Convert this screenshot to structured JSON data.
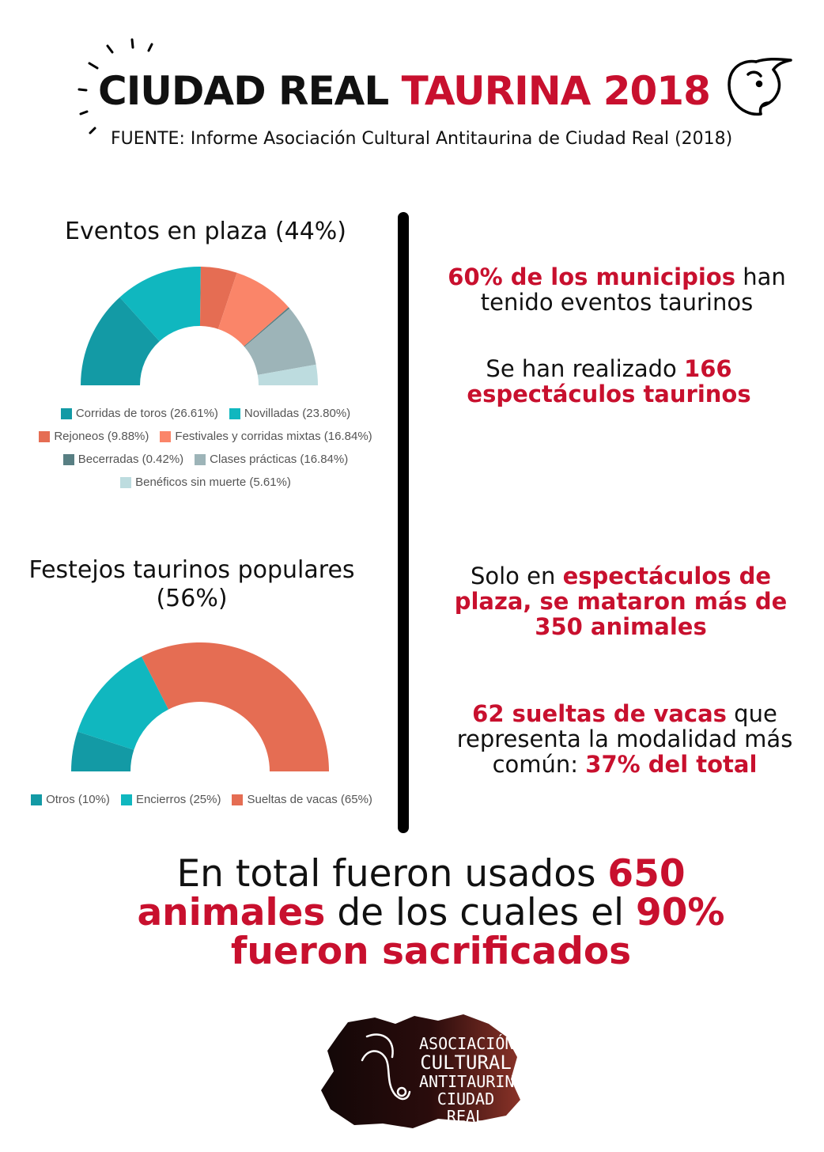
{
  "header": {
    "title_black": "CIUDAD REAL",
    "title_red": "TAURINA 2018",
    "source": "FUENTE: Informe Asociación Cultural Antitaurina de Ciudad Real (2018)"
  },
  "colors": {
    "accent": "#c8102e",
    "divider": "#000000"
  },
  "icons": {
    "header": "bull-head-icon",
    "sunburst": "sunburst-lines-icon"
  },
  "chart_data": [
    {
      "type": "pie",
      "variant": "semi-donut",
      "title": "Eventos en plaza (44%)",
      "legend_position": "bottom",
      "slices": [
        {
          "label": "Corridas de toros (26.61%)",
          "value": 26.61,
          "color": "#139aa5"
        },
        {
          "label": "Novilladas (23.80%)",
          "value": 23.8,
          "color": "#10b7bf"
        },
        {
          "label": "Rejoneos (9.88%)",
          "value": 9.88,
          "color": "#e56d53"
        },
        {
          "label": "Festivales y corridas mixtas (16.84%)",
          "value": 16.84,
          "color": "#fa8569"
        },
        {
          "label": "Becerradas (0.42%)",
          "value": 0.42,
          "color": "#587f83"
        },
        {
          "label": "Clases prácticas (16.84%)",
          "value": 16.84,
          "color": "#9db4b8"
        },
        {
          "label": "Benéficos sin muerte (5.61%)",
          "value": 5.61,
          "color": "#bddcdf"
        }
      ]
    },
    {
      "type": "pie",
      "variant": "semi-donut",
      "title": "Festejos taurinos populares (56%)",
      "legend_position": "bottom",
      "slices": [
        {
          "label": "Otros (10%)",
          "value": 10,
          "color": "#139aa5"
        },
        {
          "label": "Encierros (25%)",
          "value": 25,
          "color": "#10b7bf"
        },
        {
          "label": "Sueltas de vacas (65%)",
          "value": 65,
          "color": "#e56d53"
        }
      ]
    }
  ],
  "facts": [
    {
      "red": "60% de los municipios",
      "tail": " han tenido eventos taurinos"
    },
    {
      "head": "Se han realizado ",
      "red": "166 espectáculos taurinos"
    },
    {
      "head": "Solo en ",
      "red": "espectáculos de plaza, se mataron más de 350 animales"
    },
    {
      "red": "62 sueltas de vacas",
      "mid": " que representa la modalidad más común: ",
      "red2": "37% del total"
    }
  ],
  "bottom": {
    "part1": "En total fueron usados ",
    "red1": "650 animales",
    "part2": " de los cuales el ",
    "red2": "90% fueron sacrificados"
  },
  "logo": {
    "lines": [
      "ASOCIACIÓN",
      "CULTURAL",
      "ANTITAURINA",
      "CIUDAD REAL"
    ],
    "icon": "bull-silhouette-icon"
  }
}
